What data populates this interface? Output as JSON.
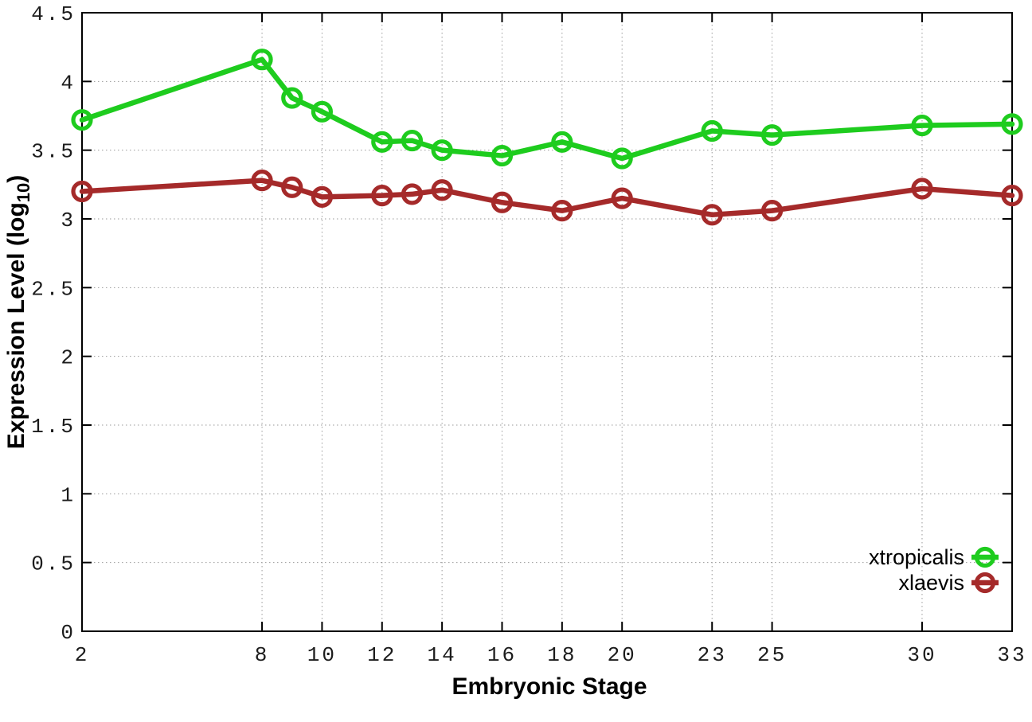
{
  "figure": {
    "background": "#ffffff",
    "xlabel": "Embryonic Stage",
    "ylabel": {
      "prefix": "Expression Level (log",
      "sub": "10",
      "suffix": ")"
    }
  },
  "style": {
    "axis_color": "#000000",
    "grid_color": "#999999",
    "tick_label_color": "#1c1c1c"
  },
  "chart_data": {
    "type": "line",
    "title": "",
    "xlabel": "Embryonic Stage",
    "ylabel": "Expression Level (log10)",
    "x": [
      2,
      8,
      9,
      10,
      12,
      13,
      14,
      16,
      18,
      20,
      23,
      25,
      30,
      33
    ],
    "series": [
      {
        "name": "xtropicalis",
        "color": "#1ecc1e",
        "marker": "open-circle",
        "values": [
          3.72,
          4.16,
          3.88,
          3.78,
          3.56,
          3.57,
          3.5,
          3.46,
          3.56,
          3.44,
          3.64,
          3.61,
          3.68,
          3.69
        ]
      },
      {
        "name": "xlaevis",
        "color": "#a52a2a",
        "marker": "open-circle",
        "values": [
          3.2,
          3.28,
          3.23,
          3.16,
          3.17,
          3.18,
          3.21,
          3.12,
          3.06,
          3.15,
          3.03,
          3.06,
          3.22,
          3.17
        ]
      }
    ],
    "xlim": [
      2,
      33
    ],
    "ylim": [
      0,
      4.5
    ],
    "x_ticks": [
      2,
      8,
      10,
      12,
      14,
      16,
      18,
      20,
      23,
      25,
      30,
      33
    ],
    "y_ticks": [
      0,
      0.5,
      1,
      1.5,
      2,
      2.5,
      3,
      3.5,
      4,
      4.5
    ],
    "grid": true,
    "legend_position": "bottom-right"
  }
}
